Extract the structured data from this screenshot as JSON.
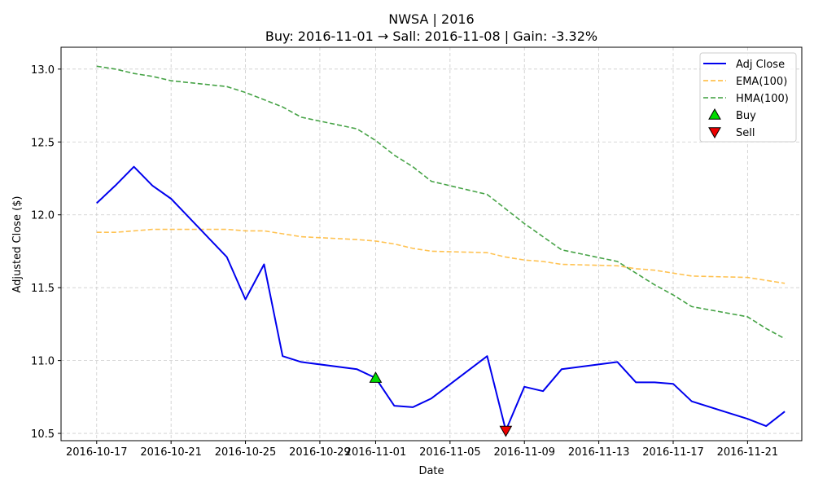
{
  "chart_data": {
    "type": "line",
    "title": "NWSA | 2016",
    "subtitle": "Buy: 2016-11-01  →  Sall: 2016-11-08  |  Gain: -3.32%",
    "xlabel": "Date",
    "ylabel": "Adjusted Close ($)",
    "ylim": [
      10.45,
      13.15
    ],
    "xlim": [
      "2016-10-15T02:00",
      "2016-11-23T22:00"
    ],
    "grid": true,
    "legend_position": "top-right",
    "x_ticks": [
      "2016-10-17",
      "2016-10-21",
      "2016-10-25",
      "2016-10-29",
      "2016-11-01",
      "2016-11-05",
      "2016-11-09",
      "2016-11-13",
      "2016-11-17",
      "2016-11-21"
    ],
    "y_ticks": [
      "10.5",
      "11.0",
      "11.5",
      "12.0",
      "12.5",
      "13.0"
    ],
    "colors": {
      "adj_close": "#0000ee",
      "ema": "#ffb732",
      "hma": "#3c9e3c",
      "buy": "#00dd00",
      "sell": "#ee0000",
      "grid": "#cccccc"
    },
    "series": [
      {
        "name": "Adj Close",
        "style": "solid",
        "points": [
          [
            "2016-10-17",
            12.08
          ],
          [
            "2016-10-18",
            12.2
          ],
          [
            "2016-10-19",
            12.33
          ],
          [
            "2016-10-20",
            12.2
          ],
          [
            "2016-10-21",
            12.11
          ],
          [
            "2016-10-24",
            11.71
          ],
          [
            "2016-10-25",
            11.42
          ],
          [
            "2016-10-26",
            11.66
          ],
          [
            "2016-10-27",
            11.03
          ],
          [
            "2016-10-28",
            10.99
          ],
          [
            "2016-10-31",
            10.94
          ],
          [
            "2016-11-01",
            10.88
          ],
          [
            "2016-11-02",
            10.69
          ],
          [
            "2016-11-03",
            10.68
          ],
          [
            "2016-11-04",
            10.74
          ],
          [
            "2016-11-07",
            11.03
          ],
          [
            "2016-11-08",
            10.52
          ],
          [
            "2016-11-09",
            10.82
          ],
          [
            "2016-11-10",
            10.79
          ],
          [
            "2016-11-11",
            10.94
          ],
          [
            "2016-11-14",
            10.99
          ],
          [
            "2016-11-15",
            10.85
          ],
          [
            "2016-11-16",
            10.85
          ],
          [
            "2016-11-17",
            10.84
          ],
          [
            "2016-11-18",
            10.72
          ],
          [
            "2016-11-21",
            10.6
          ],
          [
            "2016-11-22",
            10.55
          ],
          [
            "2016-11-23",
            10.65
          ]
        ]
      },
      {
        "name": "EMA(100)",
        "style": "dashed",
        "points": [
          [
            "2016-10-17",
            11.88
          ],
          [
            "2016-10-18",
            11.88
          ],
          [
            "2016-10-19",
            11.89
          ],
          [
            "2016-10-20",
            11.9
          ],
          [
            "2016-10-21",
            11.9
          ],
          [
            "2016-10-24",
            11.9
          ],
          [
            "2016-10-25",
            11.89
          ],
          [
            "2016-10-26",
            11.89
          ],
          [
            "2016-10-27",
            11.87
          ],
          [
            "2016-10-28",
            11.85
          ],
          [
            "2016-10-31",
            11.83
          ],
          [
            "2016-11-01",
            11.82
          ],
          [
            "2016-11-02",
            11.8
          ],
          [
            "2016-11-03",
            11.77
          ],
          [
            "2016-11-04",
            11.75
          ],
          [
            "2016-11-07",
            11.74
          ],
          [
            "2016-11-08",
            11.71
          ],
          [
            "2016-11-09",
            11.69
          ],
          [
            "2016-11-10",
            11.68
          ],
          [
            "2016-11-11",
            11.66
          ],
          [
            "2016-11-14",
            11.65
          ],
          [
            "2016-11-15",
            11.63
          ],
          [
            "2016-11-16",
            11.62
          ],
          [
            "2016-11-17",
            11.6
          ],
          [
            "2016-11-18",
            11.58
          ],
          [
            "2016-11-21",
            11.57
          ],
          [
            "2016-11-22",
            11.55
          ],
          [
            "2016-11-23",
            11.53
          ]
        ]
      },
      {
        "name": "HMA(100)",
        "style": "dashed",
        "points": [
          [
            "2016-10-17",
            13.02
          ],
          [
            "2016-10-18",
            13.0
          ],
          [
            "2016-10-19",
            12.97
          ],
          [
            "2016-10-20",
            12.95
          ],
          [
            "2016-10-21",
            12.92
          ],
          [
            "2016-10-24",
            12.88
          ],
          [
            "2016-10-25",
            12.84
          ],
          [
            "2016-10-26",
            12.79
          ],
          [
            "2016-10-27",
            12.74
          ],
          [
            "2016-10-28",
            12.67
          ],
          [
            "2016-10-31",
            12.59
          ],
          [
            "2016-11-01",
            12.51
          ],
          [
            "2016-11-02",
            12.41
          ],
          [
            "2016-11-03",
            12.33
          ],
          [
            "2016-11-04",
            12.23
          ],
          [
            "2016-11-07",
            12.14
          ],
          [
            "2016-11-08",
            12.04
          ],
          [
            "2016-11-09",
            11.94
          ],
          [
            "2016-11-10",
            11.85
          ],
          [
            "2016-11-11",
            11.76
          ],
          [
            "2016-11-14",
            11.68
          ],
          [
            "2016-11-15",
            11.6
          ],
          [
            "2016-11-16",
            11.52
          ],
          [
            "2016-11-17",
            11.45
          ],
          [
            "2016-11-18",
            11.37
          ],
          [
            "2016-11-21",
            11.3
          ],
          [
            "2016-11-22",
            11.22
          ],
          [
            "2016-11-23",
            11.15
          ]
        ]
      }
    ],
    "markers": [
      {
        "name": "Buy",
        "symbol": "triangle-up",
        "x": "2016-11-01",
        "y": 10.88
      },
      {
        "name": "Sell",
        "symbol": "triangle-down",
        "x": "2016-11-08",
        "y": 10.52
      }
    ]
  }
}
